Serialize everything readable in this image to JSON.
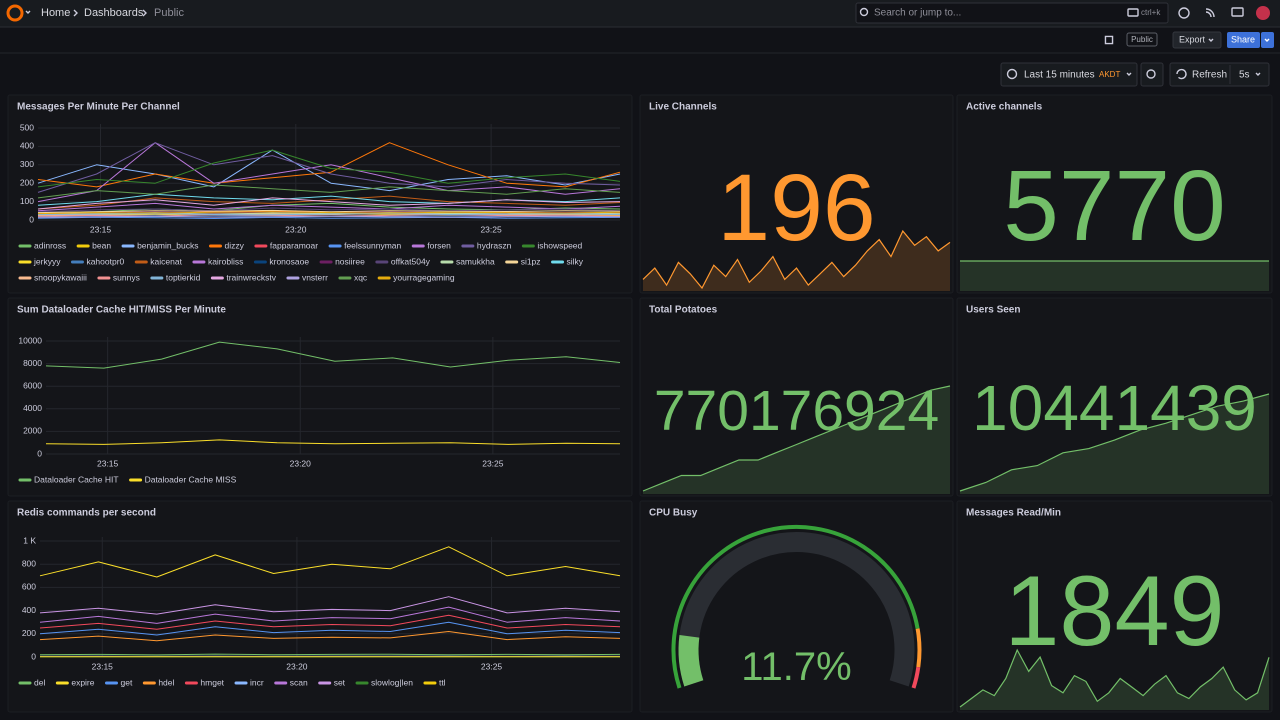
{
  "header": {
    "breadcrumbs": [
      "Home",
      "Dashboards",
      "Public"
    ],
    "search": "Search or jump to...",
    "shortcut": "ctrl+k"
  },
  "toolbar": {
    "tag": "Public",
    "export": "Export",
    "share": "Share",
    "time_range": "Last 15 minutes",
    "timezone": "AKDT",
    "refresh": "Refresh",
    "interval": "5s"
  },
  "panels": [
    {
      "type": "timeseries",
      "title": "Messages Per Minute Per Channel",
      "xlim": [
        13.4,
        28.3
      ],
      "xticks": [
        {
          "value": 15,
          "label": "23:15"
        },
        {
          "value": 20,
          "label": "23:20"
        },
        {
          "value": 25,
          "label": "23:25"
        }
      ],
      "ylim": [
        0,
        500
      ],
      "yticks": [
        0,
        100,
        200,
        300,
        400,
        500
      ],
      "x": [
        13.4,
        14.9,
        16.4,
        17.9,
        19.4,
        20.9,
        22.4,
        23.9,
        25.4,
        26.9,
        28.3
      ],
      "series": [
        {
          "name": "adinross",
          "color": "#73BF69",
          "values": [
            40,
            45,
            60,
            50,
            80,
            90,
            70,
            60,
            55,
            65,
            60
          ]
        },
        {
          "name": "bean",
          "color": "#F2CC0C",
          "values": [
            20,
            25,
            30,
            22,
            28,
            35,
            30,
            25,
            28,
            30,
            26
          ]
        },
        {
          "name": "benjamin_bucks",
          "color": "#8AB8FF",
          "values": [
            200,
            300,
            250,
            180,
            380,
            200,
            160,
            220,
            240,
            190,
            250
          ]
        },
        {
          "name": "dizzy",
          "color": "#FF780A",
          "values": [
            220,
            180,
            250,
            200,
            230,
            260,
            420,
            300,
            200,
            180,
            260
          ]
        },
        {
          "name": "fapparamoar",
          "color": "#F2495C",
          "values": [
            30,
            40,
            35,
            45,
            50,
            40,
            45,
            38,
            42,
            40,
            35
          ]
        },
        {
          "name": "feelssunnyman",
          "color": "#5794F2",
          "values": [
            10,
            15,
            12,
            8,
            14,
            10,
            12,
            15,
            10,
            12,
            14
          ]
        },
        {
          "name": "forsen",
          "color": "#B877D9",
          "values": [
            100,
            160,
            420,
            200,
            250,
            300,
            230,
            160,
            180,
            140,
            170
          ]
        },
        {
          "name": "hydraszn",
          "color": "#705DA0",
          "values": [
            150,
            250,
            420,
            300,
            350,
            250,
            200,
            180,
            220,
            200,
            190
          ]
        },
        {
          "name": "ishowspeed",
          "color": "#37872D",
          "values": [
            180,
            220,
            200,
            310,
            380,
            280,
            260,
            200,
            230,
            250,
            210
          ]
        },
        {
          "name": "jerkyyy",
          "color": "#FADE2A",
          "values": [
            25,
            30,
            28,
            35,
            32,
            30,
            40,
            35,
            30,
            28,
            32
          ]
        },
        {
          "name": "kahootpr0",
          "color": "#447EBC",
          "values": [
            15,
            20,
            18,
            22,
            25,
            20,
            18,
            22,
            20,
            18,
            22
          ]
        },
        {
          "name": "kaicenat",
          "color": "#C15C17",
          "values": [
            60,
            80,
            120,
            100,
            90,
            110,
            130,
            100,
            90,
            80,
            95
          ]
        },
        {
          "name": "kairobliss",
          "color": "#B877D9",
          "values": [
            50,
            70,
            90,
            60,
            80,
            70,
            60,
            80,
            70,
            60,
            75
          ]
        },
        {
          "name": "kronosaoe",
          "color": "#0A437C",
          "values": [
            20,
            22,
            25,
            20,
            18,
            22,
            25,
            20,
            22,
            24,
            20
          ]
        },
        {
          "name": "nosiiree",
          "color": "#6D1F62",
          "values": [
            35,
            40,
            45,
            38,
            42,
            40,
            45,
            40,
            38,
            42,
            40
          ]
        },
        {
          "name": "offkat504y",
          "color": "#584477",
          "values": [
            45,
            55,
            60,
            50,
            65,
            55,
            60,
            50,
            55,
            60,
            50
          ]
        },
        {
          "name": "samukkha",
          "color": "#B7DBAB",
          "values": [
            30,
            35,
            40,
            32,
            38,
            35,
            40,
            36,
            34,
            38,
            35
          ]
        },
        {
          "name": "si1pz",
          "color": "#F4D598",
          "values": [
            40,
            45,
            50,
            48,
            52,
            45,
            50,
            48,
            46,
            50,
            48
          ]
        },
        {
          "name": "silky",
          "color": "#70DBED",
          "values": [
            80,
            100,
            140,
            120,
            110,
            130,
            100,
            90,
            110,
            100,
            120
          ]
        },
        {
          "name": "snoopykawaiii",
          "color": "#F9BA8F",
          "values": [
            25,
            30,
            35,
            28,
            32,
            30,
            35,
            30,
            28,
            32,
            30
          ]
        },
        {
          "name": "sunnys",
          "color": "#F29191",
          "values": [
            20,
            25,
            22,
            28,
            25,
            22,
            25,
            28,
            24,
            26,
            22
          ]
        },
        {
          "name": "toptierkid",
          "color": "#82B5D8",
          "values": [
            30,
            32,
            35,
            30,
            28,
            32,
            35,
            30,
            32,
            34,
            30
          ]
        },
        {
          "name": "trainwreckstv",
          "color": "#E5A8E2",
          "values": [
            60,
            90,
            110,
            80,
            120,
            100,
            80,
            90,
            110,
            95,
            100
          ]
        },
        {
          "name": "vnsterr",
          "color": "#AEA2E0",
          "values": [
            15,
            18,
            20,
            16,
            18,
            20,
            18,
            16,
            18,
            20,
            18
          ]
        },
        {
          "name": "xqc",
          "color": "#629E51",
          "values": [
            120,
            160,
            140,
            190,
            170,
            150,
            180,
            160,
            140,
            170,
            150
          ]
        },
        {
          "name": "yourragegaming",
          "color": "#E5AC0E",
          "values": [
            35,
            40,
            38,
            42,
            45,
            40,
            38,
            42,
            40,
            38,
            42
          ]
        }
      ]
    },
    {
      "type": "stat",
      "title": "Live Channels",
      "value": 196,
      "color": "#FF9830",
      "sparkline": [
        186,
        190,
        184,
        192,
        188,
        183,
        191,
        187,
        193,
        185,
        189,
        194,
        186,
        190,
        184,
        188,
        192,
        187,
        191,
        196,
        200,
        194,
        203,
        198,
        201,
        196,
        199
      ]
    },
    {
      "type": "stat",
      "title": "Active channels",
      "value": 5770,
      "color": "#73BF69",
      "sparkline": [
        5770,
        5770,
        5770,
        5770,
        5770,
        5770,
        5770,
        5770,
        5770,
        5770
      ]
    },
    {
      "type": "timeseries",
      "title": "Sum Dataloader Cache HIT/MISS Per Minute",
      "xlim": [
        13.4,
        28.3
      ],
      "xticks": [
        {
          "value": 15,
          "label": "23:15"
        },
        {
          "value": 20,
          "label": "23:20"
        },
        {
          "value": 25,
          "label": "23:25"
        }
      ],
      "ylim": [
        0,
        10000
      ],
      "yticks": [
        0,
        2000,
        4000,
        6000,
        8000,
        10000
      ],
      "x": [
        13.4,
        14.9,
        16.4,
        17.9,
        19.4,
        20.9,
        22.4,
        23.9,
        25.4,
        26.9,
        28.3
      ],
      "series": [
        {
          "name": "Dataloader Cache HIT",
          "color": "#73BF69",
          "values": [
            7800,
            7600,
            8400,
            9900,
            9300,
            8200,
            8500,
            7700,
            8300,
            8600,
            8100
          ]
        },
        {
          "name": "Dataloader Cache MISS",
          "color": "#FADE2A",
          "values": [
            900,
            850,
            1000,
            1250,
            1000,
            900,
            950,
            1000,
            850,
            950,
            900
          ]
        }
      ]
    },
    {
      "type": "stat",
      "title": "Total Potatoes",
      "value": 770176924,
      "color": "#73BF69",
      "sparkline": [
        769500000,
        769550000,
        769600000,
        769600000,
        769650000,
        769700000,
        769700000,
        769750000,
        769800000,
        769850000,
        769900000,
        769950000,
        770000000,
        770050000,
        770100000,
        770150000,
        770176924
      ]
    },
    {
      "type": "stat",
      "title": "Users Seen",
      "value": 10441439,
      "color": "#73BF69",
      "sparkline": [
        10430000,
        10431000,
        10432500,
        10433000,
        10434500,
        10435000,
        10436000,
        10437200,
        10438000,
        10439000,
        10440000,
        10440600,
        10441439
      ]
    },
    {
      "type": "timeseries",
      "title": "Redis commands per second",
      "xlim": [
        13.4,
        28.3
      ],
      "xticks": [
        {
          "value": 15,
          "label": "23:15"
        },
        {
          "value": 20,
          "label": "23:20"
        },
        {
          "value": 25,
          "label": "23:25"
        }
      ],
      "ylim": [
        0,
        1000
      ],
      "yticks": [
        0,
        200,
        400,
        600,
        800,
        {
          "value": 1000,
          "label": "1 K"
        }
      ],
      "x": [
        13.4,
        14.9,
        16.4,
        17.9,
        19.4,
        20.9,
        22.4,
        23.9,
        25.4,
        26.9,
        28.3
      ],
      "series": [
        {
          "name": "del",
          "color": "#73BF69",
          "values": [
            20,
            22,
            18,
            25,
            20,
            22,
            24,
            20,
            22,
            20,
            22
          ]
        },
        {
          "name": "expire",
          "color": "#FADE2A",
          "values": [
            700,
            820,
            690,
            880,
            720,
            800,
            760,
            950,
            700,
            780,
            700
          ]
        },
        {
          "name": "get",
          "color": "#5794F2",
          "values": [
            200,
            240,
            190,
            260,
            210,
            230,
            220,
            300,
            200,
            230,
            210
          ]
        },
        {
          "name": "hdel",
          "color": "#FF9830",
          "values": [
            150,
            180,
            140,
            190,
            160,
            170,
            165,
            220,
            150,
            175,
            160
          ]
        },
        {
          "name": "hmget",
          "color": "#F2495C",
          "values": [
            250,
            290,
            240,
            310,
            260,
            280,
            270,
            360,
            250,
            280,
            260
          ]
        },
        {
          "name": "incr",
          "color": "#8AB8FF",
          "values": [
            5,
            6,
            5,
            7,
            5,
            6,
            6,
            7,
            5,
            6,
            5
          ]
        },
        {
          "name": "scan",
          "color": "#B877D9",
          "values": [
            300,
            350,
            290,
            370,
            310,
            340,
            330,
            430,
            300,
            340,
            310
          ]
        },
        {
          "name": "set",
          "color": "#CA95E5",
          "values": [
            380,
            420,
            370,
            450,
            390,
            410,
            400,
            520,
            380,
            420,
            390
          ]
        },
        {
          "name": "slowlog|len",
          "color": "#37872D",
          "values": [
            1,
            1,
            1,
            1,
            1,
            1,
            1,
            1,
            1,
            1,
            1
          ]
        },
        {
          "name": "ttl",
          "color": "#F2CC0C",
          "values": [
            2,
            2,
            2,
            2,
            2,
            2,
            2,
            2,
            2,
            2,
            2
          ]
        }
      ]
    },
    {
      "type": "gauge",
      "title": "CPU Busy",
      "ylim": [
        0,
        100
      ],
      "values": [
        11.7
      ],
      "value_labels": [
        "11.7%"
      ],
      "color": "#73BF69"
    },
    {
      "type": "stat",
      "title": "Messages Read/Min",
      "value": 1849,
      "color": "#73BF69",
      "sparkline": [
        1500,
        1560,
        1620,
        1580,
        1700,
        1900,
        1750,
        1850,
        1650,
        1600,
        1720,
        1680,
        1540,
        1600,
        1700,
        1640,
        1580,
        1660,
        1720,
        1600,
        1560,
        1640,
        1700,
        1780,
        1620,
        1550,
        1600,
        1849
      ]
    }
  ]
}
